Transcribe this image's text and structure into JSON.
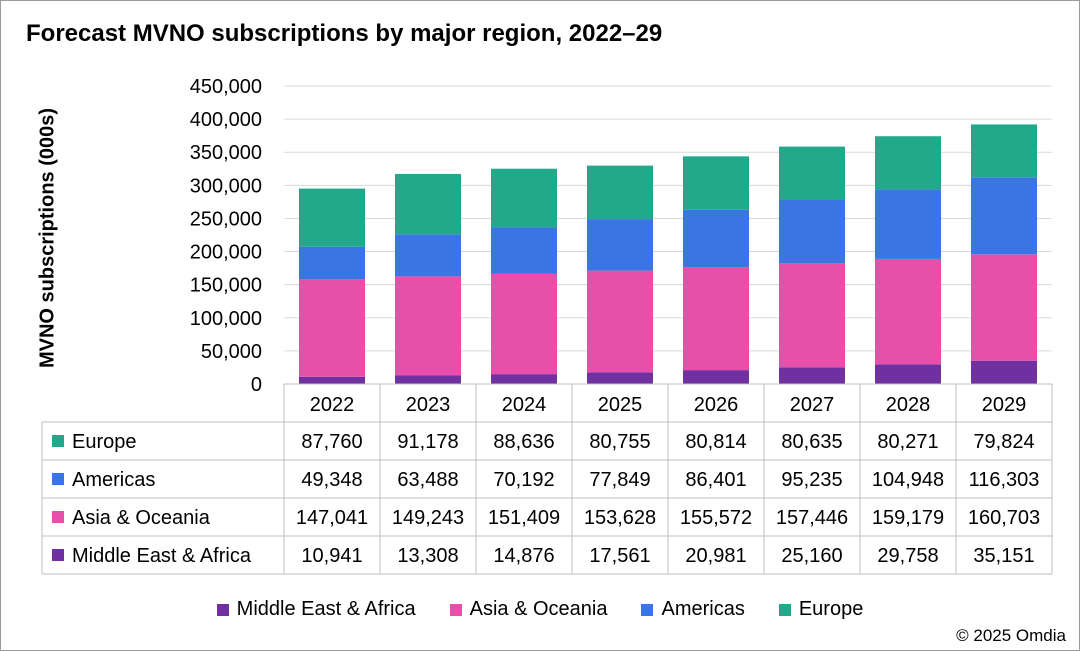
{
  "chart_data": {
    "type": "bar",
    "stacked": true,
    "title": "Forecast MVNO subscriptions by major region, 2022–29",
    "xlabel": "",
    "ylabel": "MVNO subscriptions (000s)",
    "ylim": [
      0,
      450000
    ],
    "yticks": [
      "0",
      "50,000",
      "100,000",
      "150,000",
      "200,000",
      "250,000",
      "300,000",
      "350,000",
      "400,000",
      "450,000"
    ],
    "categories": [
      "2022",
      "2023",
      "2024",
      "2025",
      "2026",
      "2027",
      "2028",
      "2029"
    ],
    "series": [
      {
        "name": "Middle East & Africa",
        "color": "#7030a0",
        "values": [
          10941,
          13308,
          14876,
          17561,
          20981,
          25160,
          29758,
          35151
        ],
        "labels": [
          "10,941",
          "13,308",
          "14,876",
          "17,561",
          "20,981",
          "25,160",
          "29,758",
          "35,151"
        ]
      },
      {
        "name": "Asia & Oceania",
        "color": "#e84fab",
        "values": [
          147041,
          149243,
          151409,
          153628,
          155572,
          157446,
          159179,
          160703
        ],
        "labels": [
          "147,041",
          "149,243",
          "151,409",
          "153,628",
          "155,572",
          "157,446",
          "159,179",
          "160,703"
        ]
      },
      {
        "name": "Americas",
        "color": "#3a76e3",
        "values": [
          49348,
          63488,
          70192,
          77849,
          86401,
          95235,
          104948,
          116303
        ],
        "labels": [
          "49,348",
          "63,488",
          "70,192",
          "77,849",
          "86,401",
          "95,235",
          "104,948",
          "116,303"
        ]
      },
      {
        "name": "Europe",
        "color": "#22a98a",
        "values": [
          87760,
          91178,
          88636,
          80755,
          80814,
          80635,
          80271,
          79824
        ],
        "labels": [
          "87,760",
          "91,178",
          "88,636",
          "80,755",
          "80,814",
          "80,635",
          "80,271",
          "79,824"
        ]
      }
    ],
    "table_row_order": [
      "Europe",
      "Americas",
      "Asia & Oceania",
      "Middle East & Africa"
    ],
    "legend_order": [
      "Middle East & Africa",
      "Asia & Oceania",
      "Americas",
      "Europe"
    ],
    "grid": true
  },
  "footer": {
    "copyright": "© 2025 Omdia"
  }
}
